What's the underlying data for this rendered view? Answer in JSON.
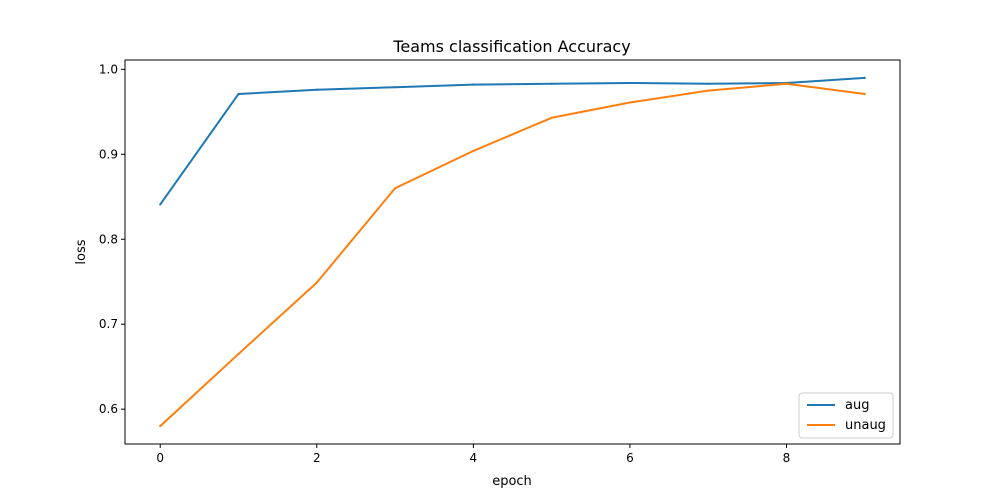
{
  "chart_data": {
    "type": "line",
    "title": "Teams classification Accuracy",
    "xlabel": "epoch",
    "ylabel": "loss",
    "x": [
      0,
      1,
      2,
      3,
      4,
      5,
      6,
      7,
      8,
      9
    ],
    "xlim": [
      -0.45,
      9.45
    ],
    "ylim": [
      0.559,
      1.011
    ],
    "xticks": [
      0,
      2,
      4,
      6,
      8
    ],
    "yticks": [
      0.6,
      0.7,
      0.8,
      0.9,
      1.0
    ],
    "xtick_labels": [
      "0",
      "2",
      "4",
      "6",
      "8"
    ],
    "ytick_labels": [
      "0.6",
      "0.7",
      "0.8",
      "0.9",
      "1.0"
    ],
    "legend_position": "lower-right",
    "series": [
      {
        "name": "aug",
        "color": "#1f77b4",
        "values": [
          0.841,
          0.971,
          0.976,
          0.979,
          0.982,
          0.983,
          0.984,
          0.983,
          0.984,
          0.99
        ]
      },
      {
        "name": "unaug",
        "color": "#ff7f0e",
        "values": [
          0.58,
          0.665,
          0.749,
          0.86,
          0.904,
          0.943,
          0.961,
          0.975,
          0.983,
          0.971
        ]
      }
    ]
  }
}
